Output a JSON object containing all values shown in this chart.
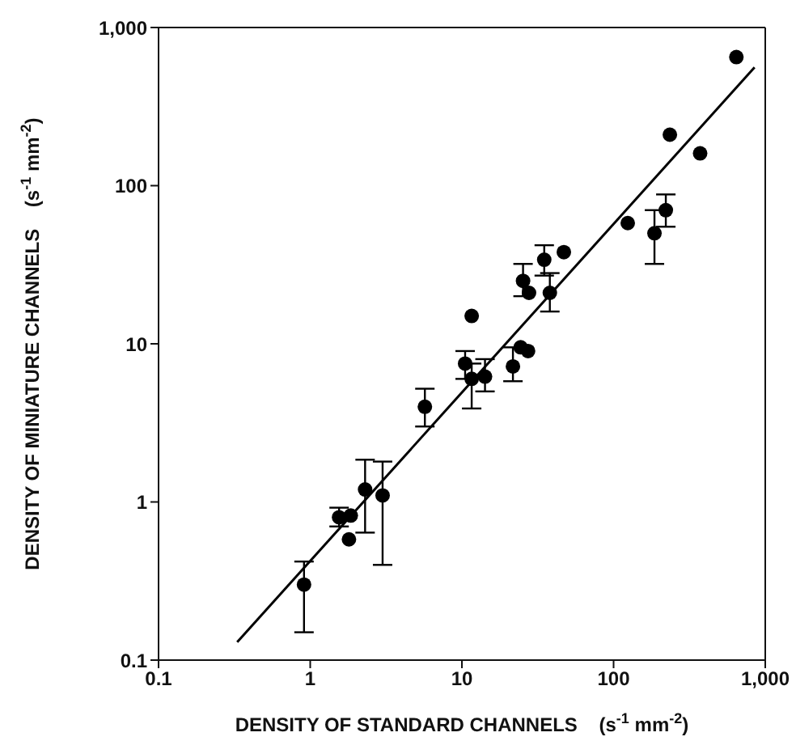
{
  "chart_data": {
    "type": "scatter",
    "xlabel": "DENSITY OF STANDARD CHANNELS    (s$^{-1}$ mm$^{-2}$)",
    "ylabel": "DENSITY OF MINIATURE CHANNELS    (s$^{-1}$ mm$^{-2}$)",
    "log": "xy",
    "marker": "circle",
    "xlim": [
      0.1,
      1000
    ],
    "ylim": [
      0.1,
      1000
    ],
    "xticks": [
      0.1,
      1,
      10,
      100,
      {
        "value": 1000,
        "label": "1,000"
      }
    ],
    "yticks": [
      0.1,
      1,
      10,
      100,
      {
        "value": 1000,
        "label": "1,000"
      }
    ],
    "series": [
      {
        "color": "#000000",
        "x": [
          0.91,
          1.55,
          1.85,
          1.8,
          2.3,
          3.0,
          5.7,
          10.5,
          11.6,
          14.2,
          11.6,
          21.7,
          24.4,
          27.3,
          25.3,
          27.7,
          34.9,
          47,
          38,
          124,
          186,
          221,
          235,
          372,
          645
        ],
        "values": [
          0.3,
          0.8,
          0.82,
          0.58,
          1.2,
          1.1,
          4,
          7.5,
          6,
          6.2,
          15,
          7.2,
          9.5,
          9,
          25,
          21,
          34,
          38,
          21,
          58,
          50,
          70,
          210,
          160,
          650
        ],
        "errors": [
          [
            0.15,
            0.42
          ],
          [
            0.7,
            0.92
          ],
          null,
          null,
          [
            0.64,
            1.85
          ],
          [
            0.4,
            1.8
          ],
          [
            3,
            5.2
          ],
          [
            6,
            9
          ],
          [
            3.9,
            7.5
          ],
          [
            5,
            8
          ],
          null,
          [
            5.8,
            9.5
          ],
          null,
          null,
          [
            20,
            32
          ],
          null,
          [
            27,
            42
          ],
          null,
          [
            16,
            28
          ],
          null,
          [
            32,
            70
          ],
          [
            55,
            88
          ],
          null,
          null,
          null
        ]
      },
      {
        "type": "line",
        "color": "#000000",
        "x": [
          0.33,
          850
        ],
        "values": [
          0.13,
          560
        ],
        "marker": "none",
        "line_style": "solid"
      }
    ]
  }
}
